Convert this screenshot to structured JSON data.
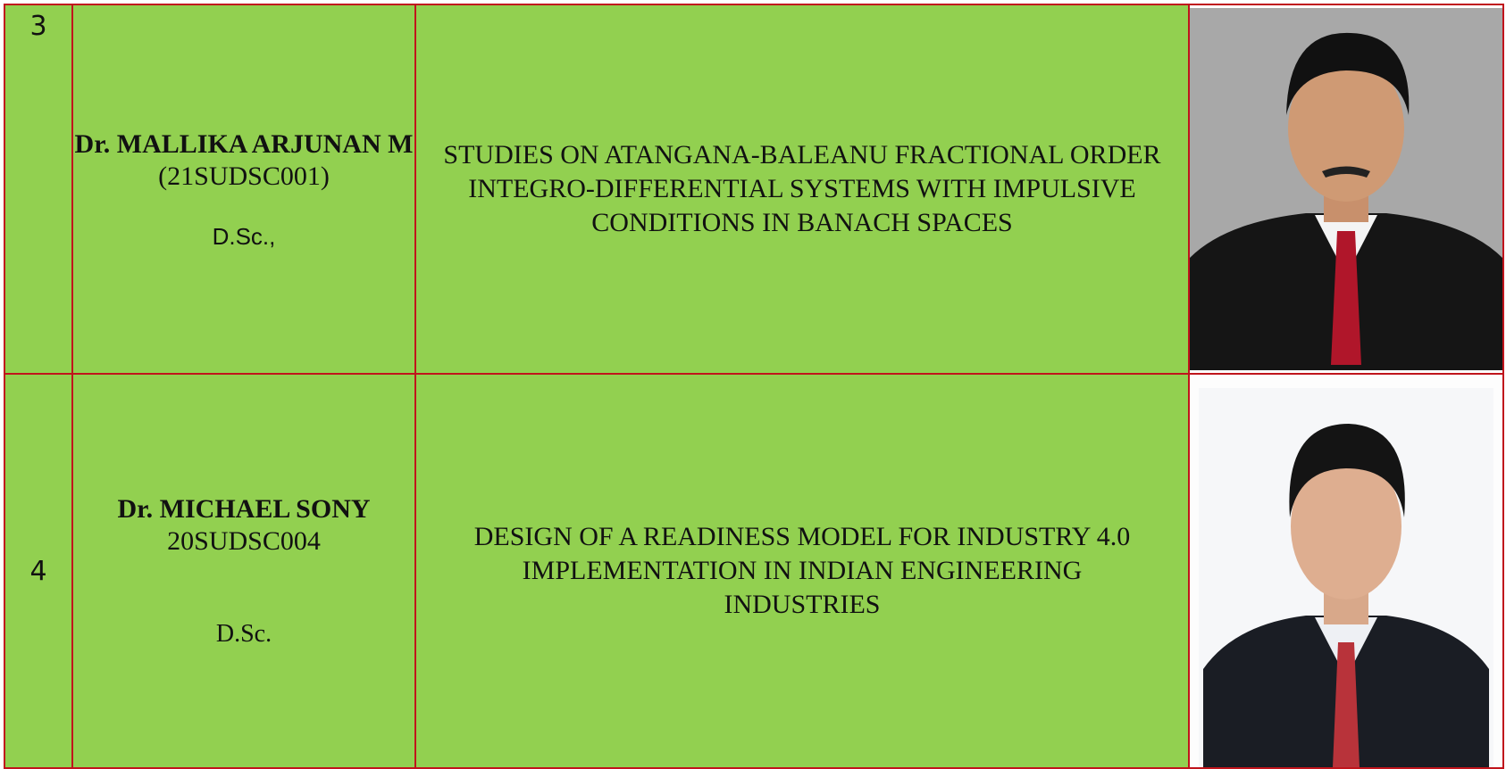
{
  "table": {
    "rows": [
      {
        "number": "3",
        "name": "Dr. MALLIKA ARJUNAN M",
        "id": "(21SUDSC001)",
        "degree": "D.Sc.,",
        "title": "STUDIES ON ATANGANA-BALEANU FRACTIONAL ORDER INTEGRO-DIFFERENTIAL SYSTEMS WITH IMPULSIVE CONDITIONS IN BANACH SPACES"
      },
      {
        "number": "4",
        "name": "Dr. MICHAEL SONY",
        "id": "20SUDSC004",
        "degree": "D.Sc.",
        "title": "DESIGN OF A READINESS MODEL FOR INDUSTRY 4.0 IMPLEMENTATION IN  INDIAN ENGINEERING INDUSTRIES"
      }
    ]
  }
}
